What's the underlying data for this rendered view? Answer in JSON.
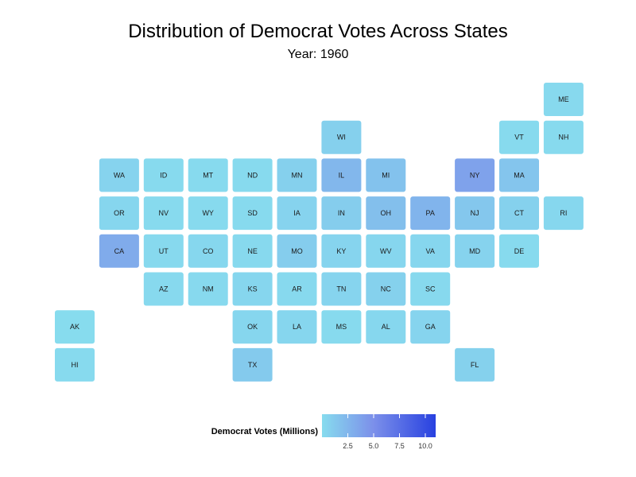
{
  "title": "Distribution of Democrat Votes Across States",
  "subtitle": "Year: 1960",
  "legend": {
    "title": "Democrat Votes (Millions)",
    "ticks": [
      2.5,
      5.0,
      7.5,
      10.0
    ],
    "tick_labels": [
      "2.5",
      "5.0",
      "7.5",
      "10.0"
    ],
    "min": 0,
    "max": 11,
    "color_low": "#87dcee",
    "color_high": "#2841e0"
  },
  "chart_data": {
    "type": "heatmap",
    "title": "Distribution of Democrat Votes Across States",
    "subtitle": "Year: 1960",
    "value_label": "Democrat Votes (Millions)",
    "color_range": [
      0,
      11
    ],
    "tiles": [
      {
        "state": "ME",
        "col": 11,
        "row": 1,
        "value": 0.2
      },
      {
        "state": "WI",
        "col": 6,
        "row": 2,
        "value": 0.8
      },
      {
        "state": "VT",
        "col": 10,
        "row": 2,
        "value": 0.1
      },
      {
        "state": "NH",
        "col": 11,
        "row": 2,
        "value": 0.1
      },
      {
        "state": "WA",
        "col": 1,
        "row": 3,
        "value": 0.6
      },
      {
        "state": "ID",
        "col": 2,
        "row": 3,
        "value": 0.1
      },
      {
        "state": "MT",
        "col": 3,
        "row": 3,
        "value": 0.1
      },
      {
        "state": "ND",
        "col": 4,
        "row": 3,
        "value": 0.1
      },
      {
        "state": "MN",
        "col": 5,
        "row": 3,
        "value": 0.8
      },
      {
        "state": "IL",
        "col": 6,
        "row": 3,
        "value": 2.4
      },
      {
        "state": "MI",
        "col": 7,
        "row": 3,
        "value": 1.7
      },
      {
        "state": "NY",
        "col": 9,
        "row": 3,
        "value": 3.8
      },
      {
        "state": "MA",
        "col": 10,
        "row": 3,
        "value": 1.5
      },
      {
        "state": "OR",
        "col": 1,
        "row": 4,
        "value": 0.4
      },
      {
        "state": "NV",
        "col": 2,
        "row": 4,
        "value": 0.1
      },
      {
        "state": "WY",
        "col": 3,
        "row": 4,
        "value": 0.1
      },
      {
        "state": "SD",
        "col": 4,
        "row": 4,
        "value": 0.1
      },
      {
        "state": "IA",
        "col": 5,
        "row": 4,
        "value": 0.6
      },
      {
        "state": "IN",
        "col": 6,
        "row": 4,
        "value": 1.0
      },
      {
        "state": "OH",
        "col": 7,
        "row": 4,
        "value": 1.9
      },
      {
        "state": "PA",
        "col": 8,
        "row": 4,
        "value": 2.6
      },
      {
        "state": "NJ",
        "col": 9,
        "row": 4,
        "value": 1.4
      },
      {
        "state": "CT",
        "col": 10,
        "row": 4,
        "value": 0.7
      },
      {
        "state": "RI",
        "col": 11,
        "row": 4,
        "value": 0.3
      },
      {
        "state": "CA",
        "col": 1,
        "row": 5,
        "value": 3.2
      },
      {
        "state": "UT",
        "col": 2,
        "row": 5,
        "value": 0.2
      },
      {
        "state": "CO",
        "col": 3,
        "row": 5,
        "value": 0.3
      },
      {
        "state": "NE",
        "col": 4,
        "row": 5,
        "value": 0.2
      },
      {
        "state": "MO",
        "col": 5,
        "row": 5,
        "value": 1.0
      },
      {
        "state": "KY",
        "col": 6,
        "row": 5,
        "value": 0.5
      },
      {
        "state": "WV",
        "col": 7,
        "row": 5,
        "value": 0.4
      },
      {
        "state": "VA",
        "col": 8,
        "row": 5,
        "value": 0.4
      },
      {
        "state": "MD",
        "col": 9,
        "row": 5,
        "value": 0.6
      },
      {
        "state": "DE",
        "col": 10,
        "row": 5,
        "value": 0.1
      },
      {
        "state": "AZ",
        "col": 2,
        "row": 6,
        "value": 0.2
      },
      {
        "state": "NM",
        "col": 3,
        "row": 6,
        "value": 0.2
      },
      {
        "state": "KS",
        "col": 4,
        "row": 6,
        "value": 0.4
      },
      {
        "state": "AR",
        "col": 5,
        "row": 6,
        "value": 0.2
      },
      {
        "state": "TN",
        "col": 6,
        "row": 6,
        "value": 0.5
      },
      {
        "state": "NC",
        "col": 7,
        "row": 6,
        "value": 0.7
      },
      {
        "state": "SC",
        "col": 8,
        "row": 6,
        "value": 0.2
      },
      {
        "state": "AK",
        "col": 0,
        "row": 7,
        "value": 0.03
      },
      {
        "state": "OK",
        "col": 4,
        "row": 7,
        "value": 0.4
      },
      {
        "state": "LA",
        "col": 5,
        "row": 7,
        "value": 0.4
      },
      {
        "state": "MS",
        "col": 6,
        "row": 7,
        "value": 0.1
      },
      {
        "state": "AL",
        "col": 7,
        "row": 7,
        "value": 0.3
      },
      {
        "state": "GA",
        "col": 8,
        "row": 7,
        "value": 0.5
      },
      {
        "state": "HI",
        "col": 0,
        "row": 8,
        "value": 0.1
      },
      {
        "state": "TX",
        "col": 4,
        "row": 8,
        "value": 1.2
      },
      {
        "state": "FL",
        "col": 9,
        "row": 8,
        "value": 0.7
      }
    ]
  }
}
